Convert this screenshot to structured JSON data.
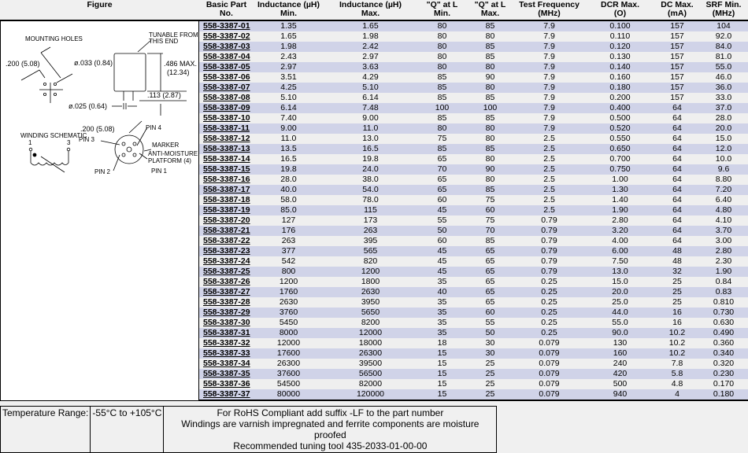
{
  "headers": {
    "figure": "Figure",
    "part": [
      "Basic Part",
      "No."
    ],
    "lmin": [
      "Inductance (µH)",
      "Min."
    ],
    "lmax": [
      "Inductance (µH)",
      "Max."
    ],
    "qmin": [
      "\"Q\" at L",
      "Min."
    ],
    "qmax": [
      "\"Q\" at L",
      "Max."
    ],
    "freq": [
      "Test Frequency",
      "(MHz)"
    ],
    "dcr": [
      "DCR Max.",
      "(O)"
    ],
    "dc": [
      "DC Max.",
      "(mA)"
    ],
    "srf": [
      "SRF Min.",
      "(MHz)"
    ]
  },
  "figure": {
    "mounting_holes": "MOUNTING HOLES",
    "tunable": [
      "TUNABLE FROM",
      "THIS END"
    ],
    "dim1": ".200 (5.08)",
    "dim2": "ø.033 (0.84)",
    "dim3": [
      ".486 MAX.",
      "(12.34)"
    ],
    "dim4": ".113 (2.87)",
    "dim5": "ø.025 (0.64)",
    "dim6": ".200 (5.08)",
    "winding": "WINDING SCHEMATIC",
    "pin_a": "1",
    "pin_b": "3",
    "pin3": "PIN 3",
    "pin4": "PIN 4",
    "marker": "MARKER",
    "anti": [
      "ANTI-MOISTURE",
      "PLATFORM (4)"
    ],
    "pin2": "PIN 2",
    "pin1": "PIN 1"
  },
  "rows": [
    [
      "558-3387-01",
      "1.35",
      "1.65",
      "80",
      "85",
      "7.9",
      "0.100",
      "157",
      "104"
    ],
    [
      "558-3387-02",
      "1.65",
      "1.98",
      "80",
      "80",
      "7.9",
      "0.110",
      "157",
      "92.0"
    ],
    [
      "558-3387-03",
      "1.98",
      "2.42",
      "80",
      "85",
      "7.9",
      "0.120",
      "157",
      "84.0"
    ],
    [
      "558-3387-04",
      "2.43",
      "2.97",
      "80",
      "85",
      "7.9",
      "0.130",
      "157",
      "81.0"
    ],
    [
      "558-3387-05",
      "2.97",
      "3.63",
      "80",
      "80",
      "7.9",
      "0.140",
      "157",
      "55.0"
    ],
    [
      "558-3387-06",
      "3.51",
      "4.29",
      "85",
      "90",
      "7.9",
      "0.160",
      "157",
      "46.0"
    ],
    [
      "558-3387-07",
      "4.25",
      "5.10",
      "85",
      "80",
      "7.9",
      "0.180",
      "157",
      "36.0"
    ],
    [
      "558-3387-08",
      "5.10",
      "6.14",
      "85",
      "85",
      "7.9",
      "0.200",
      "157",
      "33.0"
    ],
    [
      "558-3387-09",
      "6.14",
      "7.48",
      "100",
      "100",
      "7.9",
      "0.400",
      "64",
      "37.0"
    ],
    [
      "558-3387-10",
      "7.40",
      "9.00",
      "85",
      "85",
      "7.9",
      "0.500",
      "64",
      "28.0"
    ],
    [
      "558-3387-11",
      "9.00",
      "11.0",
      "80",
      "80",
      "7.9",
      "0.520",
      "64",
      "20.0"
    ],
    [
      "558-3387-12",
      "11.0",
      "13.0",
      "75",
      "80",
      "2.5",
      "0.550",
      "64",
      "15.0"
    ],
    [
      "558-3387-13",
      "13.5",
      "16.5",
      "85",
      "85",
      "2.5",
      "0.650",
      "64",
      "12.0"
    ],
    [
      "558-3387-14",
      "16.5",
      "19.8",
      "65",
      "80",
      "2.5",
      "0.700",
      "64",
      "10.0"
    ],
    [
      "558-3387-15",
      "19.8",
      "24.0",
      "70",
      "90",
      "2.5",
      "0.750",
      "64",
      "9.6"
    ],
    [
      "558-3387-16",
      "28.0",
      "38.0",
      "65",
      "80",
      "2.5",
      "1.00",
      "64",
      "8.80"
    ],
    [
      "558-3387-17",
      "40.0",
      "54.0",
      "65",
      "85",
      "2.5",
      "1.30",
      "64",
      "7.20"
    ],
    [
      "558-3387-18",
      "58.0",
      "78.0",
      "60",
      "75",
      "2.5",
      "1.40",
      "64",
      "6.40"
    ],
    [
      "558-3387-19",
      "85.0",
      "115",
      "45",
      "60",
      "2.5",
      "1.90",
      "64",
      "4.80"
    ],
    [
      "558-3387-20",
      "127",
      "173",
      "55",
      "75",
      "0.79",
      "2.80",
      "64",
      "4.10"
    ],
    [
      "558-3387-21",
      "176",
      "263",
      "50",
      "70",
      "0.79",
      "3.20",
      "64",
      "3.70"
    ],
    [
      "558-3387-22",
      "263",
      "395",
      "60",
      "85",
      "0.79",
      "4.00",
      "64",
      "3.00"
    ],
    [
      "558-3387-23",
      "377",
      "565",
      "45",
      "65",
      "0.79",
      "6.00",
      "48",
      "2.80"
    ],
    [
      "558-3387-24",
      "542",
      "820",
      "45",
      "65",
      "0.79",
      "7.50",
      "48",
      "2.30"
    ],
    [
      "558-3387-25",
      "800",
      "1200",
      "45",
      "65",
      "0.79",
      "13.0",
      "32",
      "1.90"
    ],
    [
      "558-3387-26",
      "1200",
      "1800",
      "35",
      "65",
      "0.25",
      "15.0",
      "25",
      "0.84"
    ],
    [
      "558-3387-27",
      "1760",
      "2630",
      "40",
      "65",
      "0.25",
      "20.0",
      "25",
      "0.83"
    ],
    [
      "558-3387-28",
      "2630",
      "3950",
      "35",
      "65",
      "0.25",
      "25.0",
      "25",
      "0.810"
    ],
    [
      "558-3387-29",
      "3760",
      "5650",
      "35",
      "60",
      "0.25",
      "44.0",
      "16",
      "0.730"
    ],
    [
      "558-3387-30",
      "5450",
      "8200",
      "35",
      "55",
      "0.25",
      "55.0",
      "16",
      "0.630"
    ],
    [
      "558-3387-31",
      "8000",
      "12000",
      "35",
      "50",
      "0.25",
      "90.0",
      "10.2",
      "0.490"
    ],
    [
      "558-3387-32",
      "12000",
      "18000",
      "18",
      "30",
      "0.079",
      "130",
      "10.2",
      "0.360"
    ],
    [
      "558-3387-33",
      "17600",
      "26300",
      "15",
      "30",
      "0.079",
      "160",
      "10.2",
      "0.340"
    ],
    [
      "558-3387-34",
      "26300",
      "39500",
      "15",
      "25",
      "0.079",
      "240",
      "7.8",
      "0.320"
    ],
    [
      "558-3387-35",
      "37600",
      "56500",
      "15",
      "25",
      "0.079",
      "420",
      "5.8",
      "0.230"
    ],
    [
      "558-3387-36",
      "54500",
      "82000",
      "15",
      "25",
      "0.079",
      "500",
      "4.8",
      "0.170"
    ],
    [
      "558-3387-37",
      "80000",
      "120000",
      "15",
      "25",
      "0.079",
      "940",
      "4",
      "0.180"
    ]
  ],
  "footer": {
    "temp_label": "Temperature Range:",
    "temp_value": "-55°C to +105°C",
    "notes": [
      "For RoHS Compliant add suffix -LF to the part number",
      "Windings are varnish impregnated and ferrite components are moisture proofed",
      "Recommended tuning tool 435-2033-01-00-00"
    ]
  }
}
